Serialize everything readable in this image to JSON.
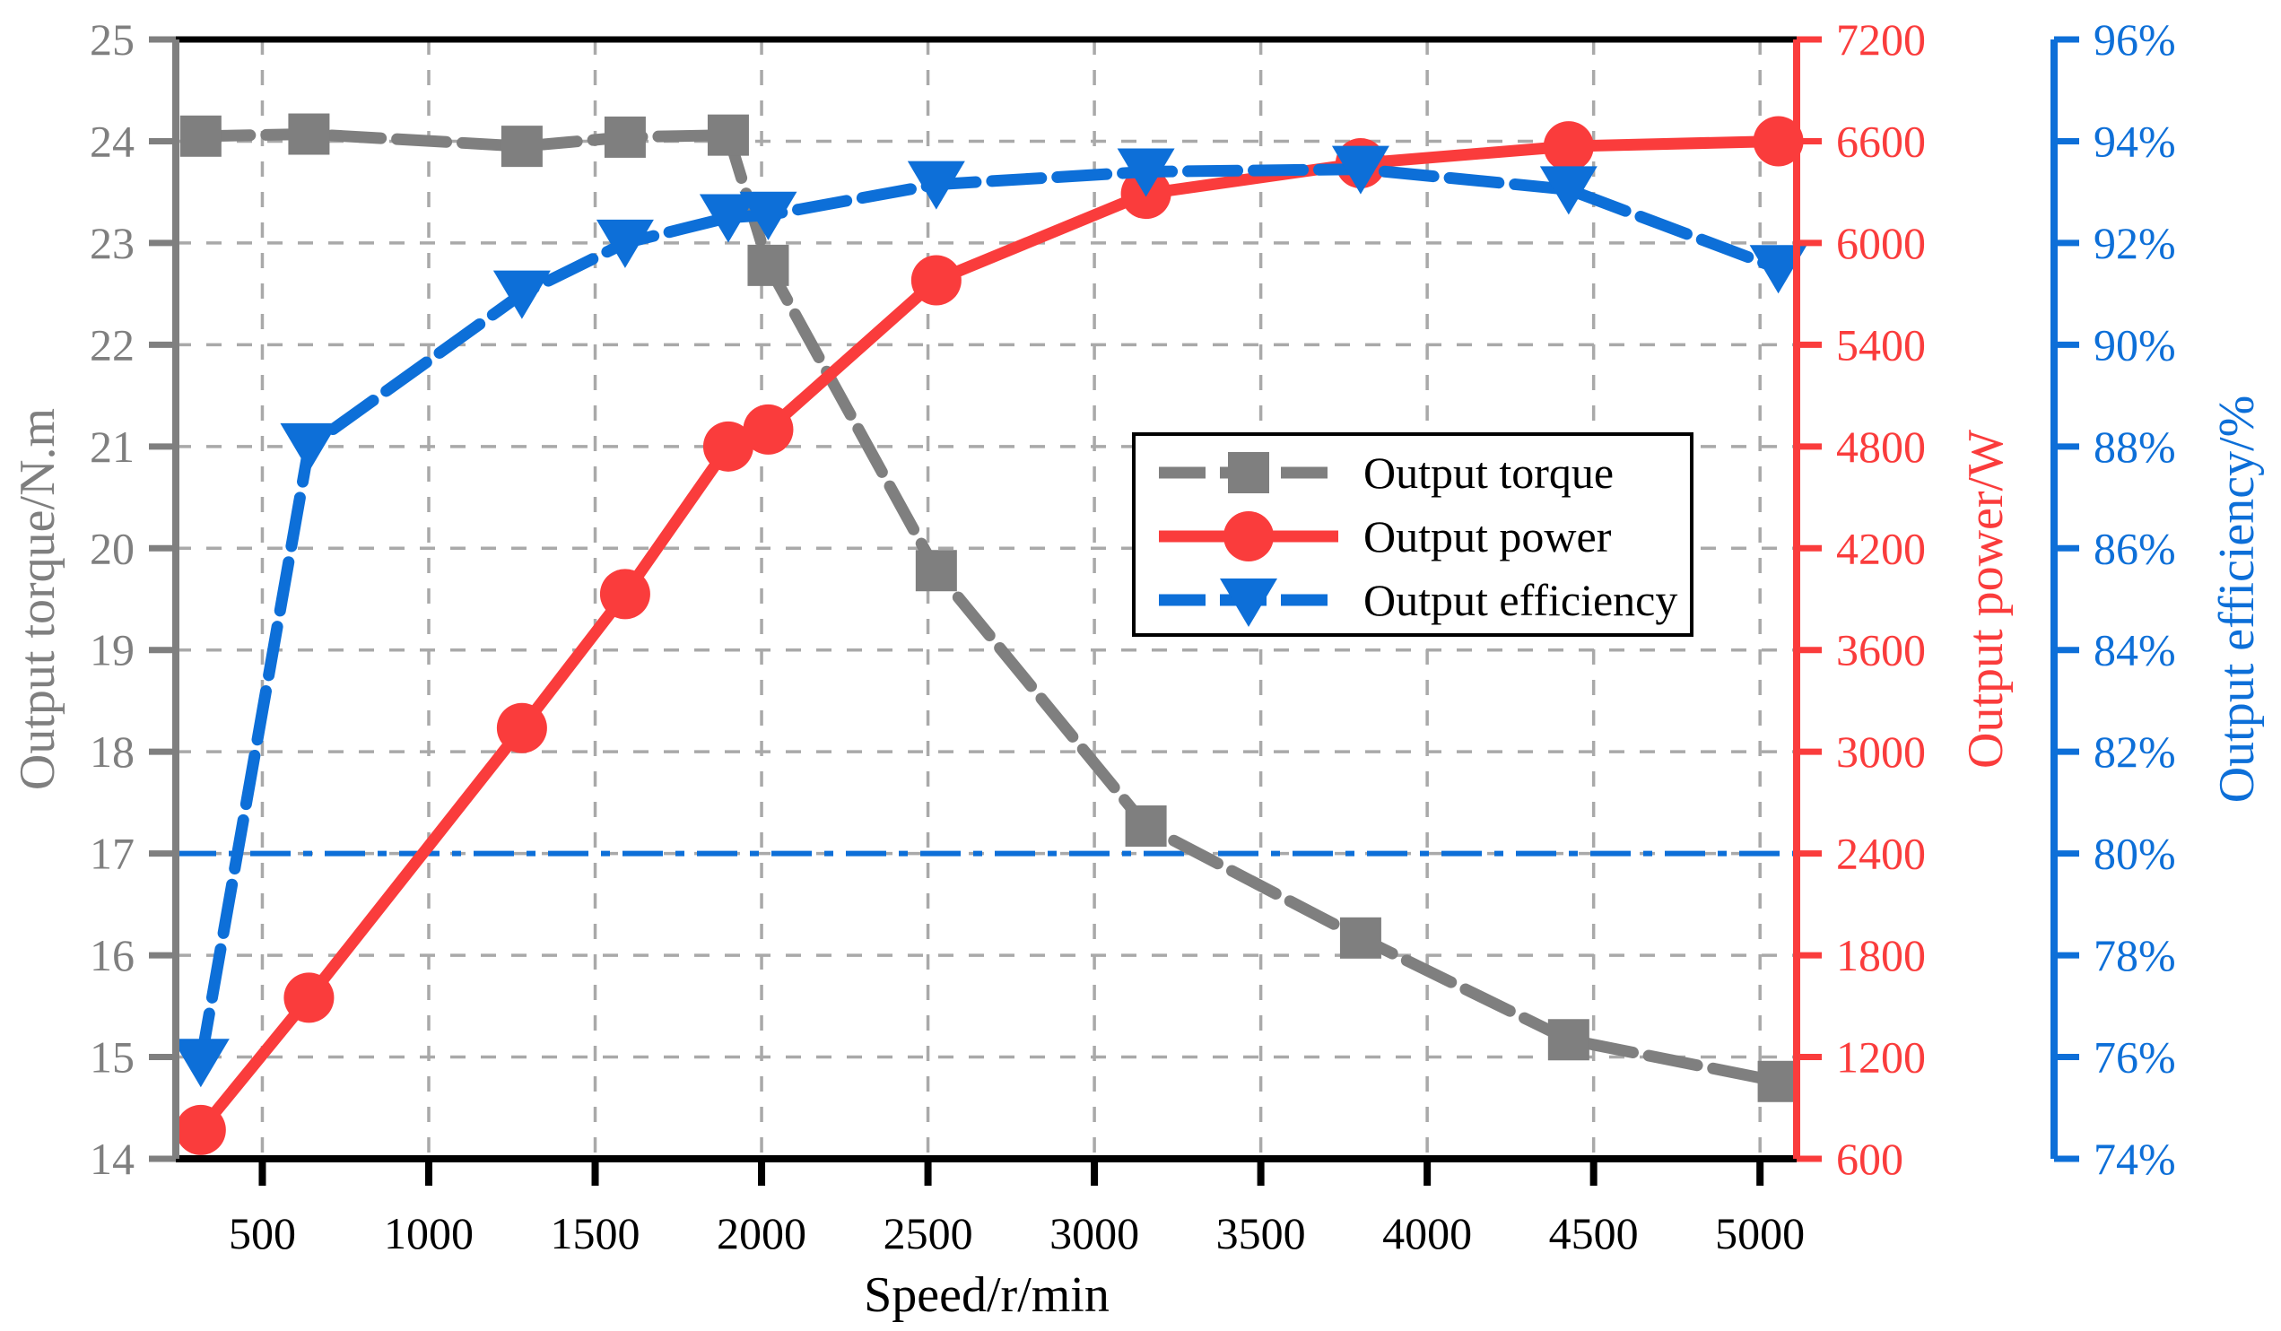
{
  "chart_data": {
    "type": "line",
    "title": "",
    "xlabel": "Speed/r/min",
    "xlim": [
      240,
      5110
    ],
    "x_ticks": [
      500,
      1000,
      1500,
      2000,
      2500,
      3000,
      3500,
      4000,
      4500,
      5000
    ],
    "grid": true,
    "background": "#ffffff",
    "axes": {
      "torque": {
        "label": "Output torque/N.m",
        "side": "left",
        "lim": [
          14,
          25
        ],
        "ticks": [
          14,
          15,
          16,
          17,
          18,
          19,
          20,
          21,
          22,
          23,
          24,
          25
        ],
        "tick_suffix": "",
        "color": "#7f7f7f"
      },
      "power": {
        "label": "Output power/W",
        "side": "right-inner",
        "lim": [
          600,
          7200
        ],
        "ticks": [
          600,
          1200,
          1800,
          2400,
          3000,
          3600,
          4200,
          4800,
          5400,
          6000,
          6600,
          7200
        ],
        "tick_suffix": "",
        "color": "#fa3c3c"
      },
      "efficiency": {
        "label": "Output efficiency/%",
        "side": "right-outer",
        "lim": [
          74,
          96
        ],
        "ticks": [
          74,
          76,
          78,
          80,
          82,
          84,
          86,
          88,
          90,
          92,
          94,
          96
        ],
        "tick_suffix": "%",
        "color": "#0d6fd8"
      }
    },
    "x": [
      315,
      640,
      1280,
      1590,
      1900,
      2020,
      2525,
      3155,
      3800,
      4425,
      5055
    ],
    "series": [
      {
        "name": "Output torque",
        "axis": "torque",
        "color": "#7f7f7f",
        "marker": "square",
        "line_style": "dashed",
        "values": [
          24.05,
          24.07,
          23.95,
          24.04,
          24.06,
          22.78,
          19.78,
          17.27,
          16.17,
          15.17,
          14.76
        ]
      },
      {
        "name": "Output power",
        "axis": "power",
        "color": "#fa3c3c",
        "marker": "circle",
        "line_style": "solid",
        "values": [
          770,
          1550,
          3140,
          3930,
          4800,
          4900,
          5780,
          6290,
          6470,
          6570,
          6600
        ]
      },
      {
        "name": "Output efficiency",
        "axis": "efficiency",
        "color": "#0d6fd8",
        "marker": "triangle-down",
        "line_style": "dashed",
        "values": [
          75.9,
          88.0,
          91.0,
          92.0,
          92.5,
          92.55,
          93.15,
          93.4,
          93.45,
          93.05,
          91.5
        ]
      }
    ],
    "reference_line": {
      "axis": "efficiency",
      "value": 80,
      "color": "#0d6fd8",
      "style": "dash-dot"
    },
    "legend": {
      "position": "center-right",
      "items": [
        "Output torque",
        "Output power",
        "Output efficiency"
      ]
    },
    "grid_color": "#a9a9a9",
    "spine_black": "#000000"
  }
}
